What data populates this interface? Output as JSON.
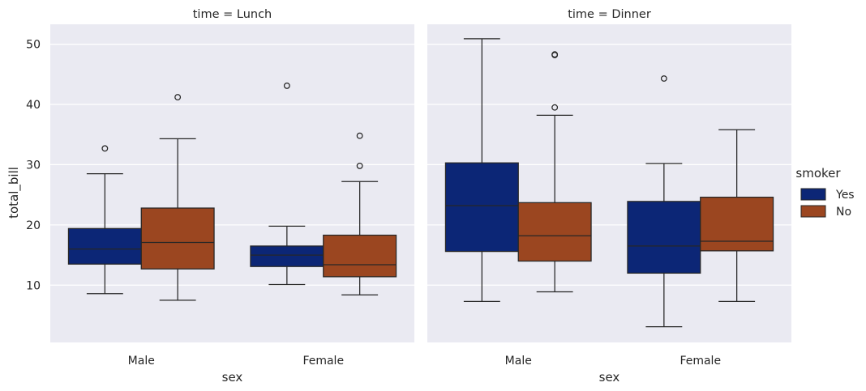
{
  "chart_data": {
    "type": "box",
    "x_variable": "sex",
    "y_variable": "total_bill",
    "xlabel": "sex",
    "ylabel": "total_bill",
    "categories": [
      "Male",
      "Female"
    ],
    "ylim": [
      0.5,
      53.3
    ],
    "yticks": [
      10,
      20,
      30,
      40,
      50
    ],
    "grid": true,
    "hue": {
      "title": "smoker",
      "levels": [
        {
          "name": "Yes",
          "color": "#0c2676"
        },
        {
          "name": "No",
          "color": "#9b4620"
        }
      ]
    },
    "legend_position": "right",
    "panels": [
      {
        "title": "time = Lunch",
        "boxes": [
          {
            "sex": "Male",
            "smoker": "Yes",
            "whisker_low": 8.6,
            "q1": 13.5,
            "median": 16.0,
            "q3": 19.4,
            "whisker_high": 28.5,
            "outliers": [
              32.7
            ]
          },
          {
            "sex": "Male",
            "smoker": "No",
            "whisker_low": 7.5,
            "q1": 12.7,
            "median": 17.1,
            "q3": 22.8,
            "whisker_high": 34.3,
            "outliers": [
              41.2
            ]
          },
          {
            "sex": "Female",
            "smoker": "Yes",
            "whisker_low": 10.1,
            "q1": 13.1,
            "median": 15.0,
            "q3": 16.5,
            "whisker_high": 19.8,
            "outliers": [
              43.1
            ]
          },
          {
            "sex": "Female",
            "smoker": "No",
            "whisker_low": 8.4,
            "q1": 11.4,
            "median": 13.4,
            "q3": 18.3,
            "whisker_high": 27.2,
            "outliers": [
              29.8,
              34.8
            ]
          }
        ]
      },
      {
        "title": "time = Dinner",
        "boxes": [
          {
            "sex": "Male",
            "smoker": "Yes",
            "whisker_low": 7.3,
            "q1": 15.6,
            "median": 23.2,
            "q3": 30.3,
            "whisker_high": 50.9,
            "outliers": []
          },
          {
            "sex": "Male",
            "smoker": "No",
            "whisker_low": 8.9,
            "q1": 14.0,
            "median": 18.2,
            "q3": 23.7,
            "whisker_high": 38.2,
            "outliers": [
              39.5,
              48.2,
              48.3
            ]
          },
          {
            "sex": "Female",
            "smoker": "Yes",
            "whisker_low": 3.1,
            "q1": 12.0,
            "median": 16.5,
            "q3": 23.9,
            "whisker_high": 30.2,
            "outliers": [
              44.3
            ]
          },
          {
            "sex": "Female",
            "smoker": "No",
            "whisker_low": 7.3,
            "q1": 15.7,
            "median": 17.3,
            "q3": 24.6,
            "whisker_high": 35.8,
            "outliers": []
          }
        ]
      }
    ]
  }
}
